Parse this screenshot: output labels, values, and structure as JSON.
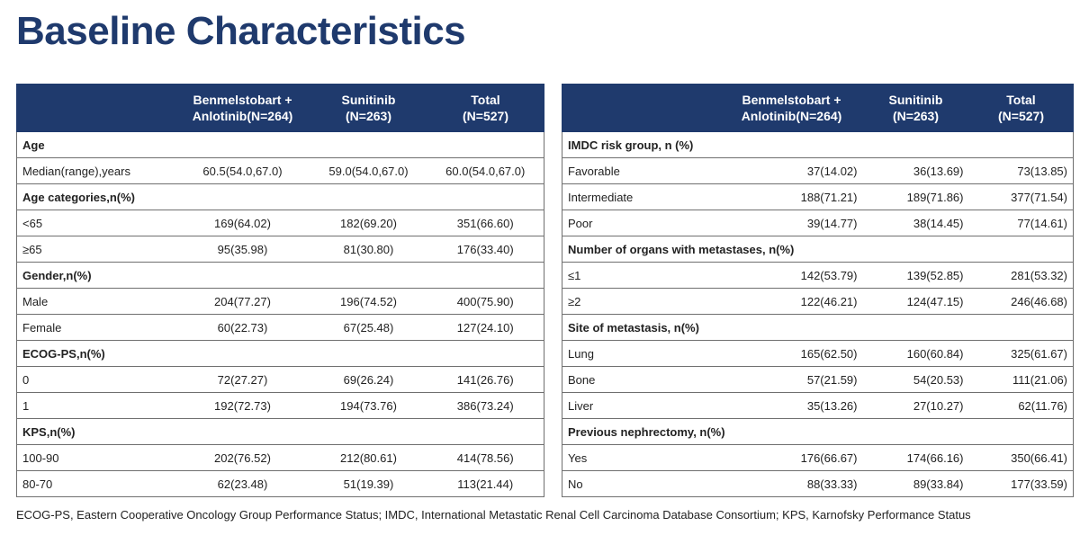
{
  "title": "Baseline Characteristics",
  "left_table": {
    "headers": [
      "",
      "Benmelstobart +\nAnlotinib(N=264)",
      "Sunitinib\n(N=263)",
      "Total\n(N=527)"
    ],
    "rows": [
      {
        "type": "section",
        "label": "Age"
      },
      {
        "type": "row",
        "label": "Median(range),years",
        "values": [
          "60.5(54.0,67.0)",
          "59.0(54.0,67.0)",
          "60.0(54.0,67.0)"
        ]
      },
      {
        "type": "section",
        "label": "Age categories,n(%)"
      },
      {
        "type": "row",
        "label": "<65",
        "values": [
          "169(64.02)",
          "182(69.20)",
          "351(66.60)"
        ]
      },
      {
        "type": "row",
        "label": "≥65",
        "values": [
          "95(35.98)",
          "81(30.80)",
          "176(33.40)"
        ]
      },
      {
        "type": "section",
        "label": "Gender,n(%)"
      },
      {
        "type": "row",
        "label": "Male",
        "values": [
          "204(77.27)",
          "196(74.52)",
          "400(75.90)"
        ]
      },
      {
        "type": "row",
        "label": "Female",
        "values": [
          "60(22.73)",
          "67(25.48)",
          "127(24.10)"
        ]
      },
      {
        "type": "section",
        "label": "ECOG-PS,n(%)"
      },
      {
        "type": "row",
        "label": "0",
        "values": [
          "72(27.27)",
          "69(26.24)",
          "141(26.76)"
        ]
      },
      {
        "type": "row",
        "label": "1",
        "values": [
          "192(72.73)",
          "194(73.76)",
          "386(73.24)"
        ]
      },
      {
        "type": "section",
        "label": "KPS,n(%)"
      },
      {
        "type": "row",
        "label": "100-90",
        "values": [
          "202(76.52)",
          "212(80.61)",
          "414(78.56)"
        ]
      },
      {
        "type": "row",
        "label": "80-70",
        "values": [
          "62(23.48)",
          "51(19.39)",
          "113(21.44)"
        ]
      }
    ]
  },
  "right_table": {
    "headers": [
      "",
      "Benmelstobart +\nAnlotinib(N=264)",
      "Sunitinib\n(N=263)",
      "Total\n(N=527)"
    ],
    "rows": [
      {
        "type": "section",
        "label": "IMDC risk group, n (%)"
      },
      {
        "type": "row",
        "label": "Favorable",
        "values": [
          "37(14.02)",
          "36(13.69)",
          "73(13.85)"
        ]
      },
      {
        "type": "row",
        "label": "Intermediate",
        "values": [
          "188(71.21)",
          "189(71.86)",
          "377(71.54)"
        ]
      },
      {
        "type": "row",
        "label": "Poor",
        "values": [
          "39(14.77)",
          "38(14.45)",
          "77(14.61)"
        ]
      },
      {
        "type": "section",
        "label": "Number of organs with metastases, n(%)"
      },
      {
        "type": "row",
        "label": "≤1",
        "values": [
          "142(53.79)",
          "139(52.85)",
          "281(53.32)"
        ]
      },
      {
        "type": "row",
        "label": "≥2",
        "values": [
          "122(46.21)",
          "124(47.15)",
          "246(46.68)"
        ]
      },
      {
        "type": "section",
        "label": "Site of metastasis, n(%)"
      },
      {
        "type": "row",
        "label": "Lung",
        "values": [
          "165(62.50)",
          "160(60.84)",
          "325(61.67)"
        ]
      },
      {
        "type": "row",
        "label": "Bone",
        "values": [
          "57(21.59)",
          "54(20.53)",
          "111(21.06)"
        ]
      },
      {
        "type": "row",
        "label": "Liver",
        "values": [
          "35(13.26)",
          "27(10.27)",
          "62(11.76)"
        ]
      },
      {
        "type": "section",
        "label": "Previous nephrectomy, n(%)"
      },
      {
        "type": "row",
        "label": "Yes",
        "values": [
          "176(66.67)",
          "174(66.16)",
          "350(66.41)"
        ]
      },
      {
        "type": "row",
        "label": "No",
        "values": [
          "88(33.33)",
          "89(33.84)",
          "177(33.59)"
        ]
      }
    ]
  },
  "footnote": "ECOG-PS, Eastern Cooperative Oncology Group Performance Status; IMDC, International Metastatic Renal Cell Carcinoma Database Consortium; KPS, Karnofsky Performance Status",
  "colors": {
    "header_bg": "#1f3a6d",
    "title": "#1f3a6d"
  }
}
